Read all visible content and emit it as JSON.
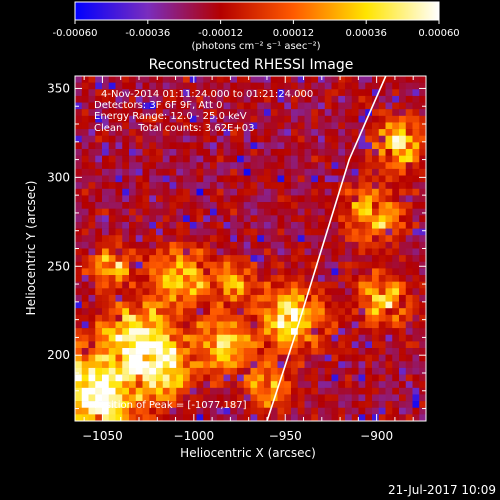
{
  "chart_data": {
    "type": "heatmap",
    "title": "Reconstructed RHESSI Image",
    "xlabel": "Heliocentric X (arcsec)",
    "ylabel": "Heliocentric Y (arcsec)",
    "xlim": [
      -1065,
      -873
    ],
    "ylim": [
      163,
      357
    ],
    "x_ticks": [
      -1050,
      -1000,
      -950,
      -900
    ],
    "y_ticks": [
      200,
      250,
      300,
      350
    ],
    "colorbar": {
      "vmin": -0.0006,
      "vmax": 0.0006,
      "ticks": [
        "-0.00060",
        "-0.00036",
        "-0.00012",
        "0.00012",
        "0.00036",
        "0.00060"
      ],
      "units_label": "(photons cm⁻² s⁻¹ asec⁻²)",
      "colors": [
        "#0000ff",
        "#7a2dbe",
        "#b40000",
        "#ff5a00",
        "#ffe400",
        "#ffffff"
      ]
    },
    "annotations": [
      "4-Nov-2014 01:11:24.000 to 01:21:24.000",
      "Detectors: 3F 6F 9F, Att 0",
      "Energy Range: 12.0 - 25.0 keV",
      "Clean     Total counts: 3.62E+03"
    ],
    "peak_label": "Position of Peak = [-1077,187]",
    "limb": [
      [
        -960,
        163
      ],
      [
        -945,
        210
      ],
      [
        -930,
        260
      ],
      [
        -915,
        310
      ],
      [
        -895,
        357
      ]
    ],
    "grid": false
  },
  "footer": {
    "timestamp": "21-Jul-2017 10:09"
  }
}
